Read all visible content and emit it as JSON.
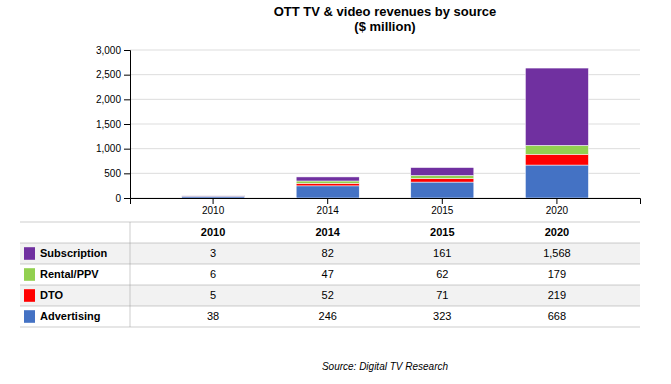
{
  "chart_data": {
    "type": "bar",
    "stacked": true,
    "grid": true,
    "title": "OTT TV & video revenues by source\n($ million)",
    "categories": [
      "2010",
      "2014",
      "2015",
      "2020"
    ],
    "series": [
      {
        "name": "Advertising",
        "color": "#4472C4",
        "values": [
          38,
          246,
          323,
          668
        ],
        "value_labels": [
          "38",
          "246",
          "323",
          "668"
        ]
      },
      {
        "name": "DTO",
        "color": "#FF0000",
        "values": [
          5,
          52,
          71,
          219
        ],
        "value_labels": [
          "5",
          "52",
          "71",
          "219"
        ]
      },
      {
        "name": "Rental/PPV",
        "color": "#92D050",
        "values": [
          6,
          47,
          62,
          179
        ],
        "value_labels": [
          "6",
          "47",
          "62",
          "179"
        ]
      },
      {
        "name": "Subscription",
        "color": "#7030A0",
        "values": [
          3,
          82,
          161,
          1568
        ],
        "value_labels": [
          "3",
          "82",
          "161",
          "1,568"
        ]
      }
    ],
    "ylim": [
      0,
      3000
    ],
    "yticks": [
      0,
      500,
      {
        "value": 1000,
        "label": "1,000"
      },
      {
        "value": 1500,
        "label": "1,500"
      },
      {
        "value": 2000,
        "label": "2,000"
      },
      {
        "value": 2500,
        "label": "2,500"
      },
      {
        "value": 3000,
        "label": "3,000"
      }
    ],
    "annotations": [
      "Source: Digital TV Research"
    ]
  }
}
